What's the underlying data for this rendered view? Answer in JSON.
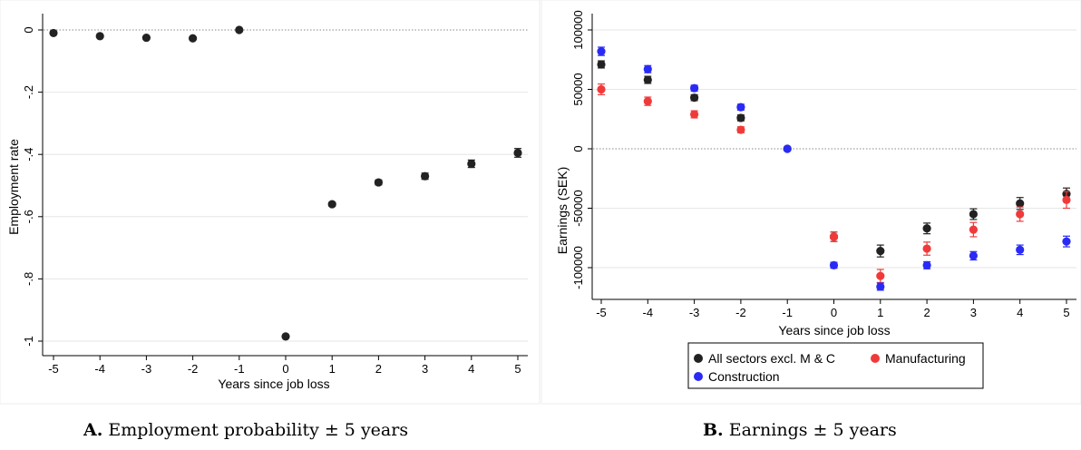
{
  "colors": {
    "black": "#222222",
    "red": "#f03a3a",
    "blue": "#2a2af5",
    "grid": "#e6e6e6",
    "frame": "#eeeeee"
  },
  "captions": [
    {
      "letter": "A.",
      "text": "Employment probability ± 5 years"
    },
    {
      "letter": "B.",
      "text": "Earnings ± 5 years"
    }
  ],
  "chart_data": [
    {
      "type": "scatter",
      "xlabel": "Years since job loss",
      "ylabel": "Employment rate",
      "x_ticks": [
        "-5",
        "-4",
        "-3",
        "-2",
        "-1",
        "0",
        "1",
        "2",
        "3",
        "4",
        "5"
      ],
      "y_ticks": [
        "0",
        "-.2",
        "-.4",
        "-.6",
        "-.8",
        "-1"
      ],
      "xlim": [
        -5,
        5
      ],
      "ylim": [
        -1,
        0
      ],
      "grid": true,
      "reference_line": 0,
      "series": [
        {
          "color": "black",
          "x": [
            -5,
            -4,
            -3,
            -2,
            -1,
            0,
            1,
            2,
            3,
            4,
            5
          ],
          "y": [
            -0.01,
            -0.02,
            -0.025,
            -0.027,
            0.0,
            -0.985,
            -0.56,
            -0.49,
            -0.47,
            -0.43,
            -0.395
          ],
          "err": [
            0.003,
            0.003,
            0.003,
            0.003,
            0.0,
            0.004,
            0.006,
            0.008,
            0.01,
            0.012,
            0.014
          ]
        }
      ]
    },
    {
      "type": "scatter",
      "xlabel": "Years since job loss",
      "ylabel": "Earnings (SEK)",
      "x_ticks": [
        "-5",
        "-4",
        "-3",
        "-2",
        "-1",
        "0",
        "1",
        "2",
        "3",
        "4",
        "5"
      ],
      "y_ticks": [
        "100000",
        "50000",
        "0",
        "-50000",
        "-100000"
      ],
      "xlim": [
        -5,
        5
      ],
      "ylim": [
        -100000,
        100000
      ],
      "grid": true,
      "reference_line": 0,
      "legend_position": "bottom",
      "legend": [
        "All sectors excl. M & C",
        "Manufacturing",
        "Construction"
      ],
      "series": [
        {
          "name": "All sectors excl. M & C",
          "color": "black",
          "x": [
            -5,
            -4,
            -3,
            -2,
            -1,
            0,
            1,
            2,
            3,
            4,
            5
          ],
          "y": [
            71000,
            58000,
            43000,
            26000,
            0,
            -74000,
            -86000,
            -67000,
            -55000,
            -46000,
            -38000
          ],
          "err": [
            3000,
            3000,
            2500,
            2500,
            0,
            4000,
            5000,
            4500,
            4500,
            5000,
            5000
          ]
        },
        {
          "name": "Manufacturing",
          "color": "red",
          "x": [
            -5,
            -4,
            -3,
            -2,
            0,
            1,
            2,
            3,
            4,
            5
          ],
          "y": [
            50000,
            40000,
            29000,
            16000,
            -74000,
            -107000,
            -84000,
            -68000,
            -55000,
            -43000
          ],
          "err": [
            4500,
            3500,
            3000,
            2500,
            4000,
            5500,
            5500,
            6000,
            6000,
            7000
          ]
        },
        {
          "name": "Construction",
          "color": "blue",
          "x": [
            -5,
            -4,
            -3,
            -2,
            -1,
            0,
            1,
            2,
            3,
            4,
            5
          ],
          "y": [
            82000,
            67000,
            51000,
            35000,
            0,
            -98000,
            -116000,
            -98000,
            -90000,
            -85000,
            -78000
          ],
          "err": [
            3500,
            3000,
            2500,
            2500,
            0,
            2500,
            3000,
            3000,
            3500,
            4000,
            4500
          ]
        }
      ]
    }
  ]
}
